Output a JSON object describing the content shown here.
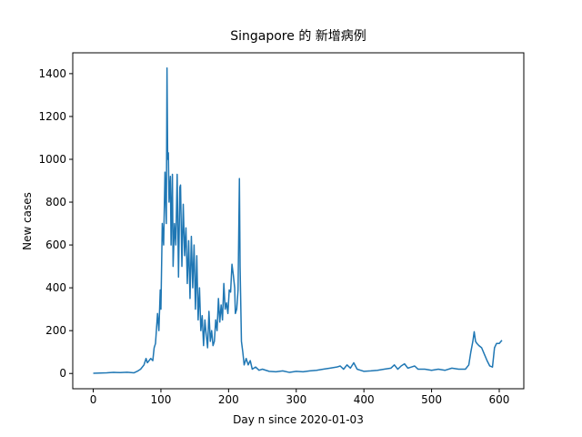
{
  "chart_data": {
    "type": "line",
    "title": "Singapore 的 新增病例",
    "x_label": "Day n since 2020-01-03",
    "y_label": "New cases",
    "color": "#1f77b4",
    "x": [
      0,
      10,
      20,
      30,
      40,
      50,
      60,
      65,
      70,
      75,
      78,
      80,
      85,
      88,
      90,
      92,
      95,
      97,
      99,
      100,
      102,
      104,
      106,
      108,
      109,
      110,
      111,
      112,
      114,
      115,
      117,
      118,
      120,
      122,
      124,
      126,
      128,
      129,
      131,
      133,
      135,
      137,
      139,
      141,
      143,
      145,
      147,
      149,
      151,
      153,
      155,
      157,
      159,
      161,
      163,
      165,
      167,
      169,
      171,
      173,
      175,
      177,
      179,
      181,
      183,
      185,
      187,
      189,
      191,
      193,
      195,
      197,
      199,
      201,
      203,
      205,
      207,
      209,
      210,
      212,
      214,
      216,
      217,
      219,
      221,
      223,
      226,
      229,
      232,
      235,
      240,
      245,
      250,
      260,
      270,
      280,
      290,
      300,
      310,
      320,
      330,
      340,
      350,
      360,
      365,
      370,
      375,
      380,
      385,
      390,
      395,
      400,
      410,
      420,
      430,
      440,
      445,
      450,
      455,
      460,
      465,
      470,
      475,
      480,
      490,
      500,
      510,
      520,
      530,
      540,
      550,
      555,
      558,
      561,
      563,
      565,
      567,
      570,
      574,
      578,
      582,
      586,
      590,
      593,
      596,
      600,
      604
    ],
    "values": [
      1,
      2,
      3,
      5,
      4,
      6,
      3,
      10,
      20,
      40,
      70,
      50,
      70,
      60,
      120,
      140,
      280,
      200,
      390,
      300,
      700,
      600,
      940,
      700,
      1426,
      1000,
      1030,
      800,
      920,
      600,
      930,
      500,
      700,
      600,
      930,
      450,
      870,
      880,
      500,
      790,
      550,
      680,
      420,
      620,
      350,
      640,
      400,
      600,
      300,
      550,
      250,
      400,
      200,
      270,
      130,
      250,
      180,
      120,
      290,
      150,
      200,
      130,
      150,
      250,
      200,
      350,
      240,
      320,
      250,
      420,
      300,
      330,
      280,
      390,
      380,
      510,
      460,
      400,
      280,
      300,
      390,
      910,
      500,
      150,
      100,
      40,
      70,
      40,
      60,
      20,
      30,
      15,
      20,
      10,
      8,
      12,
      5,
      10,
      8,
      12,
      15,
      20,
      25,
      30,
      35,
      20,
      40,
      25,
      50,
      20,
      15,
      10,
      12,
      15,
      20,
      25,
      40,
      20,
      35,
      45,
      25,
      30,
      35,
      20,
      20,
      15,
      20,
      15,
      25,
      20,
      20,
      40,
      100,
      150,
      195,
      150,
      140,
      130,
      120,
      90,
      60,
      35,
      30,
      120,
      140,
      140,
      155
    ],
    "xlim": [
      -30.3,
      636.3
    ],
    "ylim": [
      -71.3,
      1497.3
    ],
    "xticks": [
      0,
      100,
      200,
      300,
      400,
      500,
      600
    ],
    "yticks": [
      0,
      200,
      400,
      600,
      800,
      1000,
      1200,
      1400
    ]
  }
}
